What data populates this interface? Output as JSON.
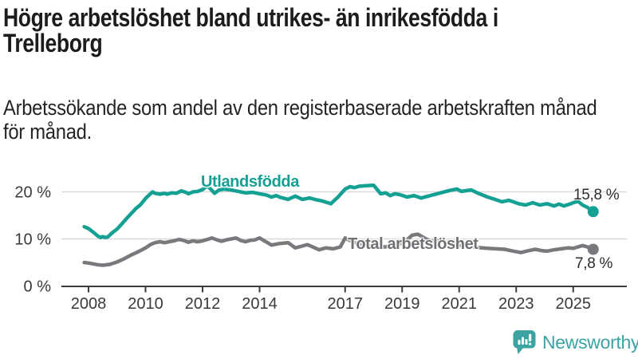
{
  "title": {
    "line1": "Högre arbetslöshet bland utrikes- än inrikesfödda i",
    "line2": "Trelleborg"
  },
  "subtitle": {
    "line1": "Arbetssökande som andel av den registerbaserade arbetskraften månad",
    "line2": "för månad."
  },
  "chart_data": {
    "type": "line",
    "title": "Högre arbetslöshet bland utrikes- än inrikesfödda i Trelleborg",
    "subtitle": "Arbetssökande som andel av den registerbaserade arbetskraften månad för månad.",
    "unit": "%",
    "x_range": [
      2007.6,
      2026.9
    ],
    "y_range": [
      0,
      24
    ],
    "grid": "horizontal",
    "x_axis": {
      "ticks": [
        {
          "label": "2008",
          "year": 2008
        },
        {
          "label": "2010",
          "year": 2010
        },
        {
          "label": "2012",
          "year": 2012
        },
        {
          "label": "2014",
          "year": 2014
        },
        {
          "label": "2017",
          "year": 2017
        },
        {
          "label": "2019",
          "year": 2019
        },
        {
          "label": "2021",
          "year": 2021
        },
        {
          "label": "2023",
          "year": 2023
        },
        {
          "label": "2025",
          "year": 2025
        }
      ]
    },
    "y_axis": {
      "ticks": [
        {
          "label": "0 %",
          "value": 0
        },
        {
          "label": "10 %",
          "value": 10
        },
        {
          "label": "20 %",
          "value": 20
        }
      ]
    },
    "series": [
      {
        "id": "utlandsfodda",
        "name": "Utlandsfödda",
        "color": "#14a093",
        "end_label": "15,8 %",
        "end_value": 15.8,
        "points": [
          [
            2007.85,
            12.6
          ],
          [
            2008.0,
            12.2
          ],
          [
            2008.17,
            11.4
          ],
          [
            2008.33,
            10.6
          ],
          [
            2008.42,
            10.3
          ],
          [
            2008.5,
            10.5
          ],
          [
            2008.58,
            10.3
          ],
          [
            2008.67,
            10.4
          ],
          [
            2008.83,
            11.3
          ],
          [
            2009.0,
            12.1
          ],
          [
            2009.17,
            13.2
          ],
          [
            2009.33,
            14.3
          ],
          [
            2009.5,
            15.4
          ],
          [
            2009.67,
            16.5
          ],
          [
            2009.83,
            17.3
          ],
          [
            2010.0,
            18.6
          ],
          [
            2010.17,
            19.6
          ],
          [
            2010.25,
            20.0
          ],
          [
            2010.33,
            19.7
          ],
          [
            2010.5,
            19.5
          ],
          [
            2010.67,
            19.7
          ],
          [
            2010.75,
            19.5
          ],
          [
            2010.92,
            19.8
          ],
          [
            2011.08,
            19.7
          ],
          [
            2011.25,
            20.2
          ],
          [
            2011.42,
            19.9
          ],
          [
            2011.5,
            19.6
          ],
          [
            2011.67,
            20.0
          ],
          [
            2011.83,
            20.1
          ],
          [
            2012.0,
            20.5
          ],
          [
            2012.17,
            21.3
          ],
          [
            2012.33,
            20.3
          ],
          [
            2012.42,
            19.7
          ],
          [
            2012.58,
            20.4
          ],
          [
            2012.75,
            20.6
          ],
          [
            2013.0,
            20.4
          ],
          [
            2013.25,
            20.1
          ],
          [
            2013.5,
            19.8
          ],
          [
            2013.75,
            19.9
          ],
          [
            2014.0,
            19.6
          ],
          [
            2014.25,
            19.3
          ],
          [
            2014.42,
            18.9
          ],
          [
            2014.58,
            19.2
          ],
          [
            2014.75,
            18.8
          ],
          [
            2015.0,
            18.4
          ],
          [
            2015.25,
            19.1
          ],
          [
            2015.5,
            18.4
          ],
          [
            2015.75,
            18.7
          ],
          [
            2016.0,
            18.3
          ],
          [
            2016.17,
            18.1
          ],
          [
            2016.5,
            17.5
          ],
          [
            2016.75,
            18.9
          ],
          [
            2017.0,
            20.6
          ],
          [
            2017.17,
            21.1
          ],
          [
            2017.33,
            20.9
          ],
          [
            2017.5,
            21.2
          ],
          [
            2017.75,
            21.3
          ],
          [
            2018.0,
            21.4
          ],
          [
            2018.25,
            19.6
          ],
          [
            2018.42,
            19.8
          ],
          [
            2018.58,
            19.2
          ],
          [
            2018.75,
            19.6
          ],
          [
            2018.92,
            19.4
          ],
          [
            2019.17,
            18.9
          ],
          [
            2019.42,
            19.2
          ],
          [
            2019.67,
            18.7
          ],
          [
            2019.92,
            19.1
          ],
          [
            2020.17,
            19.5
          ],
          [
            2020.42,
            19.9
          ],
          [
            2020.67,
            20.3
          ],
          [
            2020.92,
            20.6
          ],
          [
            2021.08,
            20.1
          ],
          [
            2021.42,
            20.4
          ],
          [
            2021.67,
            19.7
          ],
          [
            2022.0,
            18.9
          ],
          [
            2022.25,
            18.4
          ],
          [
            2022.5,
            17.9
          ],
          [
            2022.75,
            18.2
          ],
          [
            2023.08,
            17.5
          ],
          [
            2023.33,
            17.2
          ],
          [
            2023.58,
            17.7
          ],
          [
            2023.83,
            17.2
          ],
          [
            2024.08,
            17.5
          ],
          [
            2024.33,
            17.0
          ],
          [
            2024.5,
            17.4
          ],
          [
            2024.67,
            17.0
          ],
          [
            2024.92,
            17.5
          ],
          [
            2025.0,
            17.7
          ],
          [
            2025.17,
            18.0
          ],
          [
            2025.33,
            17.2
          ],
          [
            2025.5,
            16.7
          ],
          [
            2025.7,
            15.8
          ]
        ]
      },
      {
        "id": "total",
        "name": "Total arbetslöshet",
        "color": "#78787d",
        "end_label": "7,8 %",
        "end_value": 7.8,
        "points": [
          [
            2007.85,
            5.0
          ],
          [
            2008.08,
            4.8
          ],
          [
            2008.33,
            4.5
          ],
          [
            2008.5,
            4.4
          ],
          [
            2008.75,
            4.6
          ],
          [
            2009.0,
            5.1
          ],
          [
            2009.25,
            5.8
          ],
          [
            2009.5,
            6.6
          ],
          [
            2009.75,
            7.3
          ],
          [
            2010.0,
            8.1
          ],
          [
            2010.17,
            8.8
          ],
          [
            2010.33,
            9.2
          ],
          [
            2010.5,
            9.4
          ],
          [
            2010.67,
            9.2
          ],
          [
            2010.83,
            9.4
          ],
          [
            2011.0,
            9.6
          ],
          [
            2011.17,
            9.9
          ],
          [
            2011.33,
            9.7
          ],
          [
            2011.5,
            9.3
          ],
          [
            2011.67,
            9.6
          ],
          [
            2011.83,
            9.4
          ],
          [
            2012.0,
            9.6
          ],
          [
            2012.17,
            9.9
          ],
          [
            2012.33,
            10.2
          ],
          [
            2012.5,
            9.8
          ],
          [
            2012.67,
            9.5
          ],
          [
            2012.83,
            9.8
          ],
          [
            2013.0,
            10.0
          ],
          [
            2013.17,
            10.2
          ],
          [
            2013.33,
            9.7
          ],
          [
            2013.5,
            9.4
          ],
          [
            2013.67,
            9.7
          ],
          [
            2013.83,
            9.8
          ],
          [
            2014.0,
            10.2
          ],
          [
            2014.17,
            9.6
          ],
          [
            2014.42,
            8.7
          ],
          [
            2014.67,
            9.0
          ],
          [
            2015.0,
            9.2
          ],
          [
            2015.25,
            8.1
          ],
          [
            2015.5,
            8.5
          ],
          [
            2015.67,
            8.8
          ],
          [
            2015.83,
            8.4
          ],
          [
            2016.08,
            7.7
          ],
          [
            2016.33,
            8.1
          ],
          [
            2016.58,
            7.9
          ],
          [
            2016.83,
            8.3
          ],
          [
            2017.0,
            10.2
          ],
          [
            2017.25,
            9.4
          ],
          [
            2017.6,
            8.8
          ],
          [
            2018.0,
            8.5
          ],
          [
            2018.4,
            8.3
          ],
          [
            2018.8,
            8.7
          ],
          [
            2019.1,
            9.4
          ],
          [
            2019.35,
            10.8
          ],
          [
            2019.55,
            11.0
          ],
          [
            2019.75,
            10.3
          ],
          [
            2020.0,
            9.5
          ],
          [
            2020.3,
            9.7
          ],
          [
            2020.6,
            9.2
          ],
          [
            2020.9,
            8.8
          ],
          [
            2021.2,
            8.5
          ],
          [
            2021.6,
            8.2
          ],
          [
            2022.0,
            8.0
          ],
          [
            2022.3,
            7.9
          ],
          [
            2022.6,
            7.8
          ],
          [
            2022.9,
            7.4
          ],
          [
            2023.17,
            7.1
          ],
          [
            2023.42,
            7.5
          ],
          [
            2023.67,
            7.8
          ],
          [
            2023.92,
            7.5
          ],
          [
            2024.08,
            7.4
          ],
          [
            2024.33,
            7.7
          ],
          [
            2024.58,
            7.9
          ],
          [
            2024.83,
            8.1
          ],
          [
            2025.0,
            8.0
          ],
          [
            2025.17,
            8.3
          ],
          [
            2025.33,
            8.6
          ],
          [
            2025.5,
            8.3
          ],
          [
            2025.7,
            7.8
          ]
        ]
      }
    ],
    "legend_position": "inline-labels"
  },
  "branding": {
    "logo_text": "Newsworthy",
    "logo_color": "#3ba4a2",
    "icon": "chart-speech-bubble"
  },
  "colors": {
    "teal": "#14a093",
    "gray": "#78787d",
    "axis": "#3b3b3b",
    "tick_label": "#3a3a3a",
    "gridline": "#d9d9d9",
    "title": "#1c1c1b",
    "value_label": "#2b2b2b",
    "logo": "#3ba4a2"
  }
}
